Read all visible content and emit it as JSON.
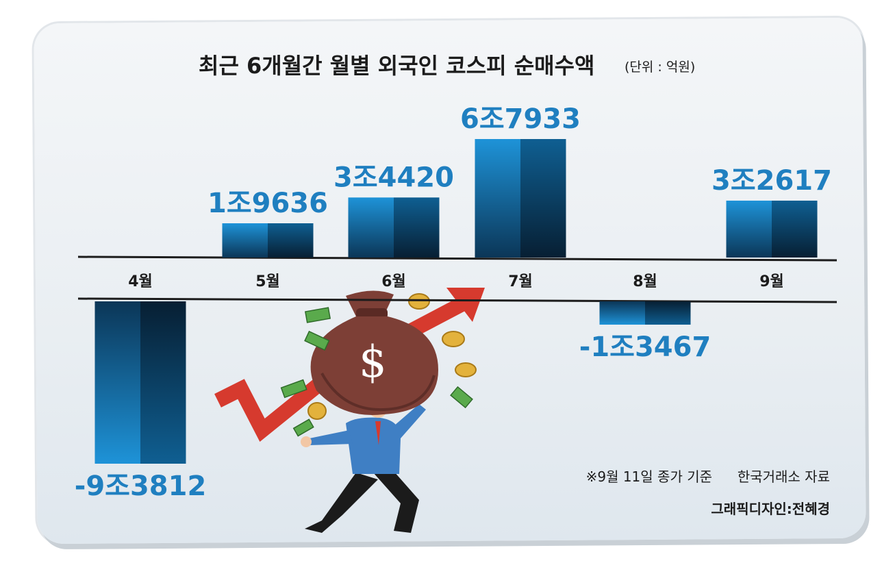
{
  "chart_data": {
    "type": "bar",
    "title": "최근 6개월간 월별 외국인 코스피 순매수액",
    "unit": "(단위 : 억원)",
    "categories": [
      "4월",
      "5월",
      "6월",
      "7월",
      "8월",
      "9월"
    ],
    "values": [
      -93812,
      19636,
      34420,
      67933,
      -13467,
      32617
    ],
    "value_labels": [
      "-9조3812",
      "1조9636",
      "3조4420",
      "6조7933",
      "-1조3467",
      "3조2617"
    ],
    "grid": false,
    "legend": "none"
  },
  "footer": {
    "note": "※9월 11일 종가 기준",
    "source": "한국거래소 자료",
    "credit": "그래픽디자인:전혜경"
  },
  "colors": {
    "bar_light": "#1a8ad0",
    "bar_dark": "#0b3250",
    "label_blue": "#1f7fc0",
    "axis": "#1c1c1c",
    "arrow_red": "#d63a2e",
    "bag_brown": "#7d3f36"
  },
  "illustration": {
    "icons": [
      "money-bag-icon",
      "dollar-sign-icon",
      "rising-arrow-icon",
      "coin-icon",
      "banknote-icon",
      "businessman-icon"
    ]
  }
}
